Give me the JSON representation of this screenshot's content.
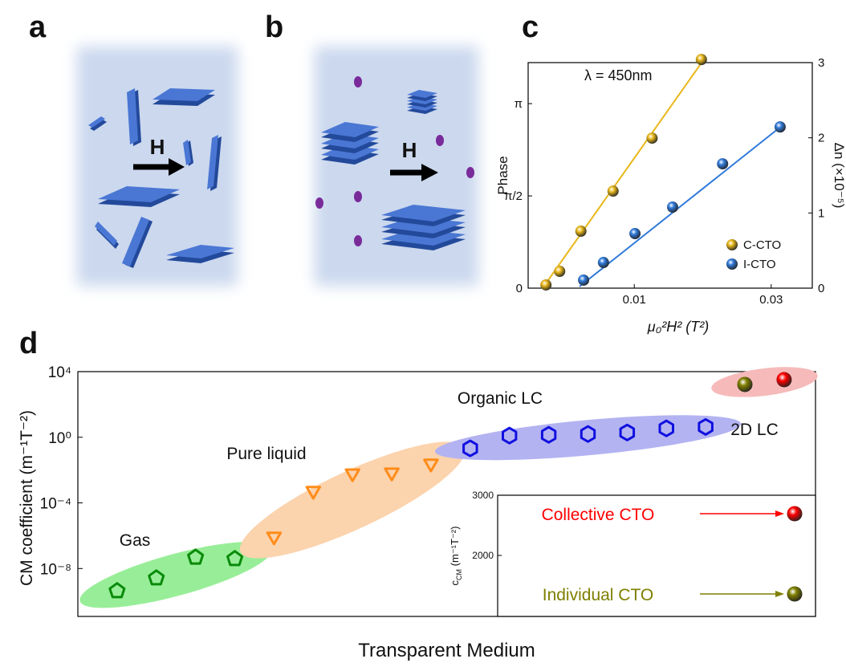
{
  "panel_labels": [
    "a",
    "b",
    "c",
    "d"
  ],
  "diagrams": {
    "a": {
      "field_label": "H"
    },
    "b": {
      "field_label": "H"
    }
  },
  "chart_data": [
    {
      "type": "scatter",
      "annotation": "λ = 450nm",
      "x_label": "μ₀²H² (T²)",
      "y_label": "Phase",
      "y2_label": "Δn (×10⁻⁵)",
      "xlim": [
        -0.0055,
        0.036
      ],
      "xticks": [
        0.01,
        0.03
      ],
      "ylim": [
        0,
        3.84
      ],
      "yticks": [
        0,
        {
          "value": 1.5708,
          "label": "π/2"
        },
        {
          "value": 3.1416,
          "label": "π"
        }
      ],
      "y2lim": [
        0,
        3
      ],
      "y2ticks": [
        0,
        1,
        2,
        3
      ],
      "legend": "lower right",
      "series": [
        {
          "name": "C-CTO",
          "color": "#e8b71a",
          "x": [
            -0.0029,
            -0.0009,
            0.0022,
            0.0069,
            0.0126,
            0.0198
          ],
          "values": [
            0.055,
            0.287,
            0.97,
            1.653,
            2.554,
            3.893
          ],
          "fit_x": [
            -0.0034,
            0.02
          ],
          "fit_values": [
            0,
            3.866
          ]
        },
        {
          "name": "I-CTO",
          "color": "#2f7ad9",
          "x": [
            0.0026,
            0.0055,
            0.0101,
            0.0156,
            0.0229,
            0.0313
          ],
          "values": [
            0.137,
            0.437,
            0.929,
            1.38,
            2.117,
            2.745
          ],
          "fit_x": [
            0.002,
            0.0318
          ],
          "fit_values": [
            0.027,
            2.786
          ]
        }
      ]
    },
    {
      "type": "scatter",
      "y_label": "CM coefficient (m⁻¹T⁻²)",
      "x_label": "Transparent Medium",
      "log_y": true,
      "xlim": [
        0,
        18.8
      ],
      "ylim": [
        1.2e-11,
        10000
      ],
      "yticks": [
        {
          "value": 10000,
          "label": "10⁴"
        },
        {
          "value": 1,
          "label": "10⁰"
        },
        {
          "value": 0.0001,
          "label": "10⁻⁴"
        },
        {
          "value": 1e-08,
          "label": "10⁻⁸"
        }
      ],
      "series": [
        {
          "name": "Gas",
          "color": "#0a8a0a",
          "marker": "pentagon",
          "region_color": "#98ee98",
          "x": [
            1,
            2,
            3,
            4
          ],
          "values": [
            4.3e-10,
            2.6e-09,
            4.8e-08,
            3.9e-08
          ]
        },
        {
          "name": "Pure liquid",
          "color": "#ff8c1a",
          "marker": "triangle-down",
          "region_color": "#fbd3ad",
          "x": [
            5,
            6,
            7,
            8,
            9
          ],
          "values": [
            8.9e-07,
            0.00054,
            0.0063,
            0.0071,
            0.025
          ]
        },
        {
          "name": "Organic LC",
          "color": "#1010e0",
          "marker": "hexagon",
          "region_color": "#b3b3f2",
          "x": [
            10,
            11,
            12,
            13,
            14,
            15,
            16
          ],
          "values": [
            0.21,
            1.26,
            1.41,
            1.58,
            1.95,
            3.47,
            4.27
          ]
        },
        {
          "name": "2D LC",
          "colors": [
            "#7f7f00",
            "#ff0000"
          ],
          "marker": "sphere",
          "region_color": "#f6baba",
          "x": [
            17,
            18
          ],
          "values": [
            1660,
            3240
          ]
        }
      ]
    },
    {
      "type": "scatter",
      "y_label": {
        "main": "c",
        "sub": "CM",
        "units": " (m⁻¹T⁻²)"
      },
      "ylim": [
        987,
        3000
      ],
      "yticks": [
        2000,
        3000
      ],
      "series": [
        {
          "name": "Collective CTO",
          "color": "#ff0000",
          "values": [
            2693
          ]
        },
        {
          "name": "Individual CTO",
          "color": "#7f7f00",
          "values": [
            1360
          ]
        }
      ]
    }
  ]
}
